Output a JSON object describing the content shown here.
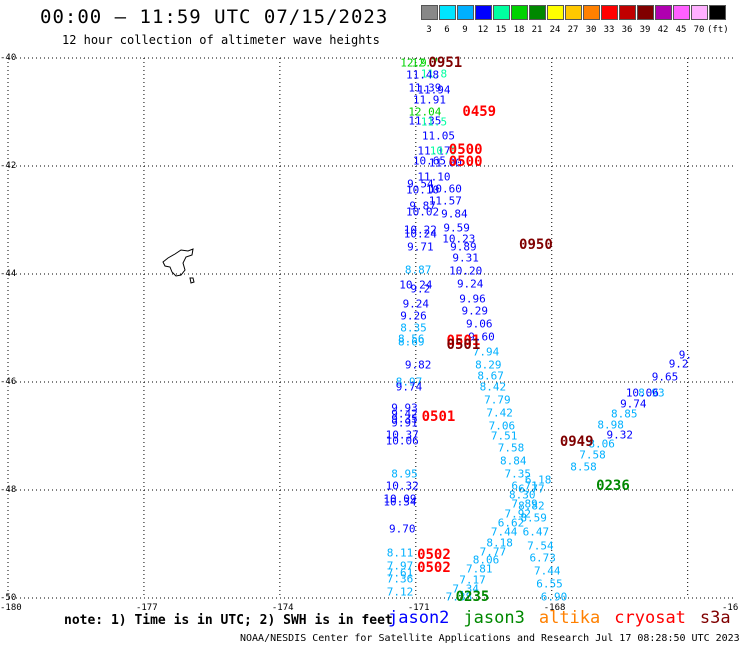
{
  "header": {
    "title": "00:00 — 11:59 UTC 07/15/2023",
    "subtitle": "12 hour collection of altimeter wave heights"
  },
  "scale": {
    "colors": [
      "#888888",
      "#00e5ff",
      "#00b0ff",
      "#0000ff",
      "#00ffa0",
      "#00d200",
      "#008800",
      "#ffff00",
      "#ffc800",
      "#ff8000",
      "#ff0000",
      "#c00000",
      "#800000",
      "#b000b0",
      "#ff60ff",
      "#ffb0ff",
      "#000000"
    ],
    "labels": [
      "3",
      "6",
      "9",
      "12",
      "15",
      "18",
      "21",
      "24",
      "27",
      "30",
      "33",
      "36",
      "39",
      "42",
      "45",
      "70",
      "(ft)"
    ]
  },
  "axes": {
    "lat_labels": [
      "-40",
      "-42",
      "-44",
      "-46",
      "-48",
      "-50"
    ],
    "lon_labels": [
      "-180",
      "-177",
      "-174",
      "-171",
      "-168",
      "-16"
    ]
  },
  "points": [
    {
      "t": "12.9",
      "lon": -171.05,
      "lat": -40.1,
      "c": "#00d200"
    },
    {
      "t": "12.7",
      "lon": -170.8,
      "lat": -40.1,
      "c": "#00d200"
    },
    {
      "t": "11.8",
      "lon": -170.6,
      "lat": -40.3,
      "c": "#00ffa0"
    },
    {
      "t": "11.48",
      "lon": -170.85,
      "lat": -40.32,
      "c": "#0000ff"
    },
    {
      "t": "11.39",
      "lon": -170.8,
      "lat": -40.55,
      "c": "#0000ff"
    },
    {
      "t": "11.94",
      "lon": -170.6,
      "lat": -40.6,
      "c": "#0000ff"
    },
    {
      "t": "11.91",
      "lon": -170.7,
      "lat": -40.78,
      "c": "#0000ff"
    },
    {
      "t": "12.04",
      "lon": -170.8,
      "lat": -41.0,
      "c": "#00d200"
    },
    {
      "t": "11.35",
      "lon": -170.8,
      "lat": -41.16,
      "c": "#0000ff"
    },
    {
      "t": "11.5",
      "lon": -170.6,
      "lat": -41.18,
      "c": "#00ffa0"
    },
    {
      "t": "11.05",
      "lon": -170.5,
      "lat": -41.44,
      "c": "#0000ff"
    },
    {
      "t": "11.17",
      "lon": -170.6,
      "lat": -41.72,
      "c": "#0000ff"
    },
    {
      "t": "10.0",
      "lon": -170.4,
      "lat": -41.72,
      "c": "#00ffa0"
    },
    {
      "t": "10.65",
      "lon": -170.7,
      "lat": -41.91,
      "c": "#0000ff"
    },
    {
      "t": "11.00",
      "lon": -170.35,
      "lat": -41.95,
      "c": "#0000ff"
    },
    {
      "t": "11.10",
      "lon": -170.6,
      "lat": -42.2,
      "c": "#0000ff"
    },
    {
      "t": "9.54",
      "lon": -170.9,
      "lat": -42.34,
      "c": "#0000ff"
    },
    {
      "t": "10.60",
      "lon": -170.35,
      "lat": -42.42,
      "c": "#0000ff"
    },
    {
      "t": "10.10",
      "lon": -170.85,
      "lat": -42.44,
      "c": "#0000ff"
    },
    {
      "t": "11.57",
      "lon": -170.35,
      "lat": -42.65,
      "c": "#0000ff"
    },
    {
      "t": "9.87",
      "lon": -170.85,
      "lat": -42.74,
      "c": "#0000ff"
    },
    {
      "t": "10.02",
      "lon": -170.85,
      "lat": -42.86,
      "c": "#0000ff"
    },
    {
      "t": "9.84",
      "lon": -170.15,
      "lat": -42.88,
      "c": "#0000ff"
    },
    {
      "t": "9.59",
      "lon": -170.1,
      "lat": -43.14,
      "c": "#0000ff"
    },
    {
      "t": "10.22",
      "lon": -170.9,
      "lat": -43.18,
      "c": "#0000ff"
    },
    {
      "t": "10.24",
      "lon": -170.9,
      "lat": -43.26,
      "c": "#0000ff"
    },
    {
      "t": "10.23",
      "lon": -170.05,
      "lat": -43.36,
      "c": "#0000ff"
    },
    {
      "t": "9.71",
      "lon": -170.9,
      "lat": -43.5,
      "c": "#0000ff"
    },
    {
      "t": "9.89",
      "lon": -169.95,
      "lat": -43.5,
      "c": "#0000ff"
    },
    {
      "t": "9.31",
      "lon": -169.9,
      "lat": -43.7,
      "c": "#0000ff"
    },
    {
      "t": "8.87",
      "lon": -170.95,
      "lat": -43.92,
      "c": "#00b0ff"
    },
    {
      "t": "10.20",
      "lon": -169.9,
      "lat": -43.94,
      "c": "#0000ff"
    },
    {
      "t": "10.24",
      "lon": -171.0,
      "lat": -44.2,
      "c": "#0000ff"
    },
    {
      "t": "9.24",
      "lon": -169.8,
      "lat": -44.18,
      "c": "#0000ff"
    },
    {
      "t": "9.2",
      "lon": -170.9,
      "lat": -44.27,
      "c": "#0000ff"
    },
    {
      "t": "9.96",
      "lon": -169.75,
      "lat": -44.46,
      "c": "#0000ff"
    },
    {
      "t": "9.24",
      "lon": -171.0,
      "lat": -44.56,
      "c": "#0000ff"
    },
    {
      "t": "9.29",
      "lon": -169.7,
      "lat": -44.68,
      "c": "#0000ff"
    },
    {
      "t": "9.26",
      "lon": -171.05,
      "lat": -44.78,
      "c": "#0000ff"
    },
    {
      "t": "9.06",
      "lon": -169.6,
      "lat": -44.92,
      "c": "#0000ff"
    },
    {
      "t": "8.35",
      "lon": -171.05,
      "lat": -45.0,
      "c": "#00b0ff"
    },
    {
      "t": "8.56",
      "lon": -171.1,
      "lat": -45.2,
      "c": "#00b0ff"
    },
    {
      "t": "8.69",
      "lon": -171.1,
      "lat": -45.26,
      "c": "#00b0ff"
    },
    {
      "t": "9.60",
      "lon": -169.55,
      "lat": -45.16,
      "c": "#0000ff"
    },
    {
      "t": "7.94",
      "lon": -169.45,
      "lat": -45.44,
      "c": "#00b0ff"
    },
    {
      "t": "9.82",
      "lon": -170.95,
      "lat": -45.68,
      "c": "#0000ff"
    },
    {
      "t": "8.29",
      "lon": -169.4,
      "lat": -45.68,
      "c": "#00b0ff"
    },
    {
      "t": "8.67",
      "lon": -169.35,
      "lat": -45.88,
      "c": "#00b0ff"
    },
    {
      "t": "8.97",
      "lon": -171.15,
      "lat": -46.0,
      "c": "#00b0ff"
    },
    {
      "t": "9.74",
      "lon": -171.15,
      "lat": -46.1,
      "c": "#0000ff"
    },
    {
      "t": "8.42",
      "lon": -169.3,
      "lat": -46.1,
      "c": "#00b0ff"
    },
    {
      "t": "7.79",
      "lon": -169.2,
      "lat": -46.34,
      "c": "#00b0ff"
    },
    {
      "t": "9.93",
      "lon": -171.25,
      "lat": -46.48,
      "c": "#0000ff"
    },
    {
      "t": "9.42",
      "lon": -171.25,
      "lat": -46.6,
      "c": "#0000ff"
    },
    {
      "t": "9.35",
      "lon": -171.25,
      "lat": -46.68,
      "c": "#0000ff"
    },
    {
      "t": "9.91",
      "lon": -171.25,
      "lat": -46.76,
      "c": "#0000ff"
    },
    {
      "t": "7.42",
      "lon": -169.15,
      "lat": -46.58,
      "c": "#00b0ff"
    },
    {
      "t": "7.06",
      "lon": -169.1,
      "lat": -46.82,
      "c": "#00b0ff"
    },
    {
      "t": "10.37",
      "lon": -171.3,
      "lat": -46.98,
      "c": "#0000ff"
    },
    {
      "t": "10.06",
      "lon": -171.3,
      "lat": -47.1,
      "c": "#0000ff"
    },
    {
      "t": "7.51",
      "lon": -169.05,
      "lat": -47.0,
      "c": "#00b0ff"
    },
    {
      "t": "7.58",
      "lon": -168.9,
      "lat": -47.22,
      "c": "#00b0ff"
    },
    {
      "t": "8.84",
      "lon": -168.85,
      "lat": -47.46,
      "c": "#00b0ff"
    },
    {
      "t": "7.35",
      "lon": -168.75,
      "lat": -47.7,
      "c": "#00b0ff"
    },
    {
      "t": "8.95",
      "lon": -171.25,
      "lat": -47.7,
      "c": "#00b0ff"
    },
    {
      "t": "10.32",
      "lon": -171.3,
      "lat": -47.92,
      "c": "#0000ff"
    },
    {
      "t": "6.71",
      "lon": -168.6,
      "lat": -47.92,
      "c": "#00b0ff"
    },
    {
      "t": "6.77",
      "lon": -168.45,
      "lat": -47.98,
      "c": "#00b0ff"
    },
    {
      "t": "6.18",
      "lon": -168.3,
      "lat": -47.82,
      "c": "#00b0ff"
    },
    {
      "t": "8.30",
      "lon": -168.65,
      "lat": -48.1,
      "c": "#00b0ff"
    },
    {
      "t": "7.89",
      "lon": -168.6,
      "lat": -48.26,
      "c": "#00b0ff"
    },
    {
      "t": "10.09",
      "lon": -171.35,
      "lat": -48.16,
      "c": "#0000ff"
    },
    {
      "t": "10.34",
      "lon": -171.35,
      "lat": -48.22,
      "c": "#0000ff"
    },
    {
      "t": "8.82",
      "lon": -168.45,
      "lat": -48.3,
      "c": "#00b0ff"
    },
    {
      "t": "7.92",
      "lon": -168.75,
      "lat": -48.44,
      "c": "#00b0ff"
    },
    {
      "t": "8.59",
      "lon": -168.4,
      "lat": -48.52,
      "c": "#00b0ff"
    },
    {
      "t": "6.62",
      "lon": -168.9,
      "lat": -48.62,
      "c": "#00b0ff"
    },
    {
      "t": "9.70",
      "lon": -171.3,
      "lat": -48.72,
      "c": "#0000ff"
    },
    {
      "t": "7.44",
      "lon": -169.05,
      "lat": -48.78,
      "c": "#00b0ff"
    },
    {
      "t": "6.47",
      "lon": -168.35,
      "lat": -48.78,
      "c": "#00b0ff"
    },
    {
      "t": "8.18",
      "lon": -169.15,
      "lat": -48.98,
      "c": "#00b0ff"
    },
    {
      "t": "7.54",
      "lon": -168.25,
      "lat": -49.04,
      "c": "#00b0ff"
    },
    {
      "t": "8.11",
      "lon": -171.35,
      "lat": -49.16,
      "c": "#00b0ff"
    },
    {
      "t": "7.77",
      "lon": -169.3,
      "lat": -49.14,
      "c": "#00b0ff"
    },
    {
      "t": "6.73",
      "lon": -168.2,
      "lat": -49.26,
      "c": "#00b0ff"
    },
    {
      "t": "8.06",
      "lon": -169.45,
      "lat": -49.3,
      "c": "#00b0ff"
    },
    {
      "t": "7.97",
      "lon": -171.35,
      "lat": -49.4,
      "c": "#00b0ff"
    },
    {
      "t": "7.81",
      "lon": -169.6,
      "lat": -49.46,
      "c": "#00b0ff"
    },
    {
      "t": "7.44",
      "lon": -168.1,
      "lat": -49.5,
      "c": "#00b0ff"
    },
    {
      "t": "7.61",
      "lon": -171.35,
      "lat": -49.54,
      "c": "#00b0ff"
    },
    {
      "t": "7.17",
      "lon": -169.75,
      "lat": -49.66,
      "c": "#00b0ff"
    },
    {
      "t": "7.36",
      "lon": -171.35,
      "lat": -49.64,
      "c": "#00b0ff"
    },
    {
      "t": "6.55",
      "lon": -168.05,
      "lat": -49.74,
      "c": "#00b0ff"
    },
    {
      "t": "7.34",
      "lon": -169.9,
      "lat": -49.84,
      "c": "#00b0ff"
    },
    {
      "t": "7.12",
      "lon": -171.35,
      "lat": -49.88,
      "c": "#00b0ff"
    },
    {
      "t": "7.38",
      "lon": -170.05,
      "lat": -49.98,
      "c": "#00b0ff"
    },
    {
      "t": "6.90",
      "lon": -167.95,
      "lat": -49.98,
      "c": "#00b0ff"
    },
    {
      "t": "8.06",
      "lon": -166.9,
      "lat": -47.14,
      "c": "#00b0ff"
    },
    {
      "t": "7.58",
      "lon": -167.1,
      "lat": -47.36,
      "c": "#00b0ff"
    },
    {
      "t": "8.58",
      "lon": -167.3,
      "lat": -47.58,
      "c": "#00b0ff"
    },
    {
      "t": "9.32",
      "lon": -166.5,
      "lat": -46.98,
      "c": "#0000ff"
    },
    {
      "t": "8.98",
      "lon": -166.7,
      "lat": -46.8,
      "c": "#00b0ff"
    },
    {
      "t": "8.85",
      "lon": -166.4,
      "lat": -46.6,
      "c": "#00b0ff"
    },
    {
      "t": "8.93",
      "lon": -165.8,
      "lat": -46.2,
      "c": "#00b0ff"
    },
    {
      "t": "9.74",
      "lon": -166.2,
      "lat": -46.4,
      "c": "#0000ff"
    },
    {
      "t": "10.06",
      "lon": -166.0,
      "lat": -46.2,
      "c": "#0000ff"
    },
    {
      "t": "9.65",
      "lon": -165.5,
      "lat": -45.9,
      "c": "#0000ff"
    },
    {
      "t": "9.2",
      "lon": -165.2,
      "lat": -45.66,
      "c": "#0000ff"
    },
    {
      "t": "9.",
      "lon": -165.05,
      "lat": -45.5,
      "c": "#0000ff"
    }
  ],
  "time_labels": [
    {
      "t": "0951",
      "lon": -170.35,
      "lat": -40.1,
      "c": "#800000"
    },
    {
      "t": "0459",
      "lon": -169.6,
      "lat": -41.0,
      "c": "#ff0000"
    },
    {
      "t": "0500",
      "lon": -169.9,
      "lat": -41.7,
      "c": "#ff0000"
    },
    {
      "t": "0500",
      "lon": -169.9,
      "lat": -41.93,
      "c": "#ff0000"
    },
    {
      "t": "0950",
      "lon": -168.35,
      "lat": -43.46,
      "c": "#800000"
    },
    {
      "t": "0501",
      "lon": -169.95,
      "lat": -45.24,
      "c": "#ff0000"
    },
    {
      "t": "0501",
      "lon": -169.95,
      "lat": -45.32,
      "c": "#800000"
    },
    {
      "t": "0501",
      "lon": -170.5,
      "lat": -46.65,
      "c": "#ff0000"
    },
    {
      "t": "0949",
      "lon": -167.45,
      "lat": -47.12,
      "c": "#800000"
    },
    {
      "t": "0236",
      "lon": -166.65,
      "lat": -47.92,
      "c": "#008800"
    },
    {
      "t": "0502",
      "lon": -170.6,
      "lat": -49.2,
      "c": "#ff0000"
    },
    {
      "t": "0502",
      "lon": -170.6,
      "lat": -49.44,
      "c": "#ff0000"
    },
    {
      "t": "0235",
      "lon": -169.75,
      "lat": -49.98,
      "c": "#008800"
    }
  ],
  "footer": {
    "note": "note:  1) Time is in UTC; 2) SWH is in feet",
    "legend": [
      {
        "label": "jason2",
        "color": "#0000ff"
      },
      {
        "label": "jason3",
        "color": "#008800"
      },
      {
        "label": "altika",
        "color": "#ff8000"
      },
      {
        "label": "cryosat",
        "color": "#ff0000"
      },
      {
        "label": "s3a",
        "color": "#800000"
      }
    ],
    "credit": "NOAA/NESDIS Center for Satellite Applications and Research   Jul 17 08:28:50 UTC 2023"
  }
}
